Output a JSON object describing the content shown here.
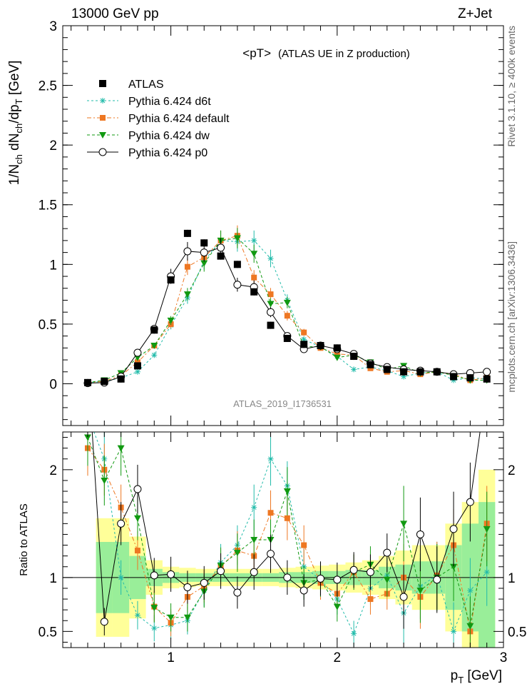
{
  "header": {
    "left": "13000 GeV pp",
    "right": "Z+Jet"
  },
  "side_texts": {
    "rivet": "Rivet 3.1.10, ≥ 400k events",
    "mcplots": "mcplots.cern.ch [arXiv:1306.3436]"
  },
  "colors": {
    "atlas": "#000000",
    "d6t": "#22bbaa",
    "default": "#ee7722",
    "dw": "#119911",
    "p0": "#000000",
    "band_inner": "#99ee99",
    "band_outer": "#ffff99"
  },
  "chart_data": [
    {
      "type": "line",
      "panel": "main",
      "title": "<pT>",
      "subtitle": "(ATLAS UE in Z production)",
      "ylabel": "1/N_ch dN_ch/dp_T [GeV]",
      "ylabel_parts": {
        "a": "1/N",
        "b": "ch",
        "c": " dN",
        "d": "ch",
        "e": "/dp",
        "f": "T",
        "g": " [GeV]"
      },
      "watermark": "ATLAS_2019_I1736531",
      "xlim": [
        0.35,
        3.0
      ],
      "ylim": [
        -0.35,
        3.0
      ],
      "yticks": [
        "0",
        "0.5",
        "1",
        "1.5",
        "2",
        "2.5",
        "3"
      ],
      "x": [
        0.5,
        0.6,
        0.7,
        0.8,
        0.9,
        1.0,
        1.1,
        1.2,
        1.3,
        1.4,
        1.5,
        1.6,
        1.7,
        1.8,
        1.9,
        2.0,
        2.1,
        2.2,
        2.3,
        2.4,
        2.5,
        2.6,
        2.7,
        2.8,
        2.9
      ],
      "series": [
        {
          "name": "ATLAS",
          "marker": "square",
          "values": [
            0.01,
            0.02,
            0.04,
            0.15,
            0.45,
            0.87,
            1.26,
            1.18,
            1.07,
            1.0,
            0.77,
            0.49,
            0.38,
            0.33,
            0.32,
            0.3,
            0.23,
            0.16,
            0.12,
            0.1,
            0.1,
            0.1,
            0.06,
            0.05,
            0.04
          ]
        },
        {
          "name": "Pythia 6.424 d6t",
          "marker": "star",
          "values": [
            0.01,
            0.02,
            0.05,
            0.1,
            0.24,
            0.49,
            0.72,
            1.03,
            1.2,
            1.19,
            1.2,
            1.05,
            0.7,
            0.37,
            0.31,
            0.23,
            0.12,
            0.14,
            0.11,
            0.06,
            0.09,
            0.1,
            0.03,
            0.05,
            0.04
          ]
        },
        {
          "name": "Pythia 6.424 default",
          "marker": "filled-square",
          "values": [
            0.01,
            0.02,
            0.07,
            0.18,
            0.32,
            0.5,
            0.98,
            1.06,
            1.2,
            1.24,
            0.89,
            0.75,
            0.57,
            0.43,
            0.3,
            0.25,
            0.24,
            0.13,
            0.1,
            0.11,
            0.08,
            0.1,
            0.08,
            0.03,
            0.05
          ]
        },
        {
          "name": "Pythia 6.424 dw",
          "marker": "triangle-down",
          "values": [
            0.01,
            0.03,
            0.09,
            0.22,
            0.32,
            0.53,
            0.75,
            1.01,
            1.2,
            1.22,
            1.09,
            0.67,
            0.68,
            0.31,
            0.31,
            0.22,
            0.24,
            0.18,
            0.12,
            0.15,
            0.09,
            0.1,
            0.07,
            0.03,
            0.03
          ]
        },
        {
          "name": "Pythia 6.424 p0",
          "marker": "open-circle",
          "values": [
            0.005,
            0.01,
            0.06,
            0.26,
            0.46,
            0.9,
            1.11,
            1.1,
            1.14,
            0.83,
            0.81,
            0.6,
            0.4,
            0.29,
            0.32,
            0.29,
            0.25,
            0.17,
            0.14,
            0.12,
            0.11,
            0.1,
            0.08,
            0.09,
            0.1
          ]
        }
      ],
      "legend_position": "top-left"
    },
    {
      "type": "line",
      "panel": "ratio",
      "ylabel": "Ratio to ATLAS",
      "xlabel": "p_T [GeV]",
      "xlabel_parts": {
        "a": "p",
        "b": "T",
        "c": " [GeV]"
      },
      "xlim": [
        0.35,
        3.0
      ],
      "ylim": [
        0.35,
        2.35
      ],
      "xticks": [
        "1",
        "2",
        "3"
      ],
      "yticks": [
        "0.5",
        "1",
        "2"
      ],
      "reference_line": 1,
      "x": [
        0.5,
        0.6,
        0.7,
        0.8,
        0.9,
        1.0,
        1.1,
        1.2,
        1.3,
        1.4,
        1.5,
        1.6,
        1.7,
        1.8,
        1.9,
        2.0,
        2.1,
        2.2,
        2.3,
        2.4,
        2.5,
        2.6,
        2.7,
        2.8,
        2.9
      ],
      "band": {
        "inner_half": [
          0.0,
          0.33,
          0.33,
          0.2,
          0.08,
          0.05,
          0.04,
          0.04,
          0.04,
          0.04,
          0.04,
          0.04,
          0.05,
          0.05,
          0.06,
          0.06,
          0.07,
          0.07,
          0.1,
          0.12,
          0.15,
          0.15,
          0.3,
          0.5,
          0.7
        ],
        "outer_half": [
          0.0,
          0.55,
          0.55,
          0.38,
          0.16,
          0.1,
          0.09,
          0.08,
          0.08,
          0.08,
          0.08,
          0.08,
          0.09,
          0.1,
          0.11,
          0.12,
          0.14,
          0.16,
          0.2,
          0.25,
          0.3,
          0.3,
          0.5,
          0.7,
          1.0
        ]
      },
      "series": [
        {
          "name": "Pythia 6.424 d6t",
          "values": [
            2.5,
            2.1,
            1.0,
            0.65,
            0.53,
            0.56,
            0.6,
            0.88,
            1.14,
            1.3,
            1.65,
            2.1,
            1.85,
            1.1,
            0.98,
            0.8,
            0.48,
            0.9,
            1.02,
            0.67,
            0.92,
            1.02,
            0.5,
            0.88,
            1.05
          ]
        },
        {
          "name": "Pythia 6.424 default",
          "values": [
            2.2,
            2.0,
            1.65,
            1.25,
            0.73,
            0.58,
            0.82,
            0.92,
            1.1,
            1.25,
            1.2,
            1.6,
            1.55,
            1.3,
            0.95,
            0.85,
            1.05,
            0.8,
            0.85,
            1.0,
            0.82,
            1.02,
            1.3,
            0.5,
            1.5
          ]
        },
        {
          "name": "Pythia 6.424 dw",
          "values": [
            2.3,
            1.9,
            2.2,
            1.55,
            0.72,
            0.63,
            0.63,
            0.87,
            1.11,
            1.23,
            1.35,
            1.35,
            1.8,
            0.95,
            0.98,
            0.73,
            1.05,
            1.12,
            0.98,
            1.5,
            0.88,
            1.0,
            1.1,
            0.55,
            1.45
          ]
        },
        {
          "name": "Pythia 6.424 p0",
          "values": [
            3.0,
            0.59,
            1.5,
            1.82,
            1.02,
            1.03,
            0.91,
            0.95,
            1.06,
            0.86,
            1.05,
            1.22,
            1.0,
            0.88,
            0.99,
            0.98,
            1.07,
            1.05,
            1.23,
            0.82,
            1.4,
            0.98,
            1.45,
            1.7,
            2.8
          ]
        }
      ]
    }
  ]
}
